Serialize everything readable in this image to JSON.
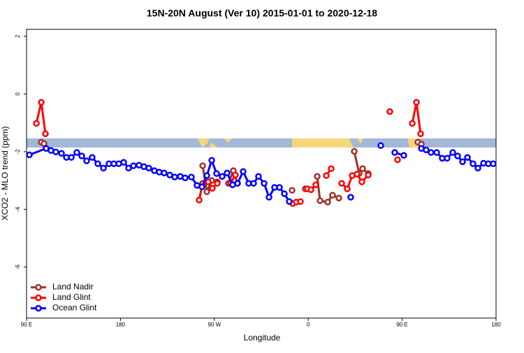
{
  "chart_data": {
    "type": "line",
    "title": "15N-20N August (Ver 10)   2015-01-01 to 2020-12-18",
    "xlabel": "Longitude",
    "ylabel": "XCO2 - MLO trend (ppm)",
    "xlim": [
      90,
      540
    ],
    "ylim": [
      -7.77,
      2.24
    ],
    "xticks": [
      {
        "value": 90,
        "label": "90 E"
      },
      180,
      {
        "value": 270,
        "label": "90 W"
      },
      {
        "value": 360,
        "label": "0"
      },
      {
        "value": 450,
        "label": "90 E"
      },
      {
        "value": 540,
        "label": "180"
      }
    ],
    "yticks": [
      -6,
      -4,
      -2,
      0,
      2
    ],
    "legend": "bottom-left",
    "series": [
      {
        "name": "Land Nadir",
        "color": "#a0302c",
        "x": [
          104.1,
          106.7,
          null,
          258.8,
          262.8,
          267.5,
          272.8,
          null,
          283.5,
          288.2,
          292.2,
          null,
          344.5,
          null,
          357.2,
          null,
          368.6,
          371.3,
          378.6,
          383.3,
          389.3,
          null,
          404.1,
          408.8,
          412.1,
          417.5,
          null,
          465.0,
          468.4
        ],
        "values": [
          -1.67,
          -1.72,
          null,
          -2.49,
          -3.39,
          -3.0,
          -3.05,
          null,
          -3.1,
          -2.66,
          -3.1,
          null,
          -3.34,
          null,
          -3.29,
          null,
          -2.86,
          -3.7,
          -3.75,
          -3.51,
          -3.61,
          null,
          -1.99,
          -2.76,
          -2.59,
          -2.76,
          null,
          -1.67,
          -1.74
        ]
      },
      {
        "name": "Land Glint",
        "color": "#ff0000",
        "x": [
          99.4,
          104.1,
          108.1,
          null,
          255.4,
          258.8,
          264.1,
          268.1,
          272.8,
          null,
          285.5,
          290.2,
          null,
          345.1,
          348.5,
          352.5,
          null,
          359.2,
          362.6,
          367.2,
          null,
          377.3,
          382.0,
          null,
          392.0,
          397.4,
          402.1,
          406.7,
          411.4,
          417.5,
          null,
          438.2,
          null,
          445.6,
          null,
          459.7,
          463.7,
          467.7
        ],
        "values": [
          -1.02,
          -0.29,
          -1.38,
          null,
          -3.68,
          -3.1,
          -3.05,
          -3.27,
          -3.1,
          null,
          -3.1,
          -2.81,
          null,
          -3.8,
          -3.75,
          -3.73,
          null,
          -3.29,
          -3.32,
          -3.15,
          null,
          -2.83,
          -2.59,
          null,
          -3.1,
          -3.29,
          -2.83,
          -2.78,
          -3.05,
          -2.81,
          null,
          -0.61,
          null,
          -2.28,
          null,
          -1.02,
          -0.29,
          -1.38
        ]
      },
      {
        "name": "Ocean Glint",
        "color": "#0000ff",
        "x": [
          92.7,
          108.8,
          113.4,
          118.1,
          123.5,
          128.2,
          132.9,
          138.2,
          142.9,
          147.6,
          152.9,
          158.3,
          163.7,
          169.0,
          173.7,
          178.4,
          183.1,
          187.8,
          192.5,
          197.8,
          202.5,
          207.2,
          212.5,
          217.2,
          221.9,
          227.3,
          232.0,
          237.3,
          242.0,
          248.0,
          253.4,
          258.1,
          262.8,
          267.5,
          272.1,
          277.5,
          282.2,
          287.5,
          292.2,
          297.6,
          302.9,
          307.6,
          312.3,
          317.7,
          322.4,
          327.7,
          332.4,
          337.1,
          341.8,
          null,
          400.7,
          null,
          429.5,
          null,
          442.9,
          451.6,
          null,
          468.4,
          473.0,
          477.7,
          483.1,
          488.4,
          493.1,
          498.5,
          503.2,
          507.9,
          512.6,
          517.9,
          522.6,
          528.0,
          532.6,
          537.3
        ],
        "values": [
          -2.11,
          -1.89,
          -1.96,
          -2.01,
          -2.06,
          -2.2,
          -2.2,
          -2.03,
          -2.15,
          -2.32,
          -2.2,
          -2.42,
          -2.57,
          -2.42,
          -2.42,
          -2.42,
          -2.37,
          -2.57,
          -2.49,
          -2.47,
          -2.52,
          -2.57,
          -2.66,
          -2.71,
          -2.74,
          -2.81,
          -2.88,
          -2.86,
          -2.91,
          -2.88,
          -3.17,
          -3.22,
          -2.83,
          -2.3,
          -2.76,
          -2.86,
          -2.74,
          -3.15,
          -3.1,
          -2.69,
          -3.1,
          -3.1,
          -2.86,
          -3.1,
          -3.58,
          -3.24,
          -3.24,
          -3.46,
          -3.73,
          null,
          -3.58,
          null,
          -1.79,
          null,
          -2.03,
          -2.13,
          null,
          -1.89,
          -1.94,
          -2.03,
          -2.03,
          -2.23,
          -2.23,
          -2.03,
          -2.15,
          -2.35,
          -2.2,
          -2.42,
          -2.57,
          -2.4,
          -2.42,
          -2.42
        ]
      }
    ]
  }
}
